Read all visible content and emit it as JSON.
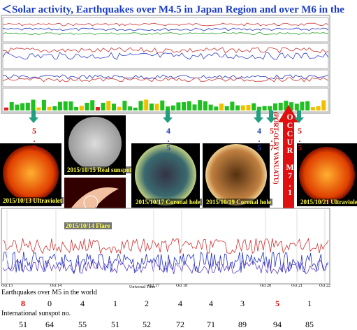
{
  "title": "＜Solar activity, Earthquakes over M4.5 in Japan Region and over M6 in the",
  "markers": [
    {
      "label": "5.0",
      "color": "#d01010"
    },
    {
      "label": "4.5",
      "color": "#2040c0"
    },
    {
      "label": "4.5",
      "color": "#2040c0"
    },
    {
      "label": "5.7",
      "color": "#d01010"
    },
    {
      "label": "5.5",
      "color": "#d01010"
    }
  ],
  "alert": {
    "label": "OCCUR M7.1",
    "place": "(PORT-OLRY VANUATU)"
  },
  "images": [
    "2015/10/13 Ultraviolet",
    "2015/10/15 Real sunspot",
    "2015/10/14 Flare",
    "2015/10/17 Coronal hole",
    "2015/10/19 Coronal hole",
    "2015/10/21 Ultraviolet"
  ],
  "bottom_chart": {
    "x_labels": [
      "Oct 13",
      "Oct 14",
      "Oct 17",
      "Oct 18",
      "Oct 20",
      "Oct 21",
      "Oct 22"
    ],
    "axis_label": "Universal Time"
  },
  "rows": [
    {
      "label": "Earthquakes over M5 in the world",
      "values": [
        8,
        0,
        4,
        1,
        2,
        4,
        4,
        3,
        5,
        1
      ],
      "colors": [
        "#e00000",
        "#000000",
        "#000000",
        "#000000",
        "#000000",
        "#000000",
        "#000000",
        "#000000",
        "#e00000",
        "#000000"
      ]
    },
    {
      "label": "International sunspot no.",
      "values": [
        51,
        64,
        55,
        51,
        52,
        72,
        71,
        89,
        94,
        85
      ],
      "colors": [
        "#000000",
        "#000000",
        "#000000",
        "#000000",
        "#000000",
        "#000000",
        "#000000",
        "#000000",
        "#000000",
        "#000000"
      ]
    }
  ]
}
